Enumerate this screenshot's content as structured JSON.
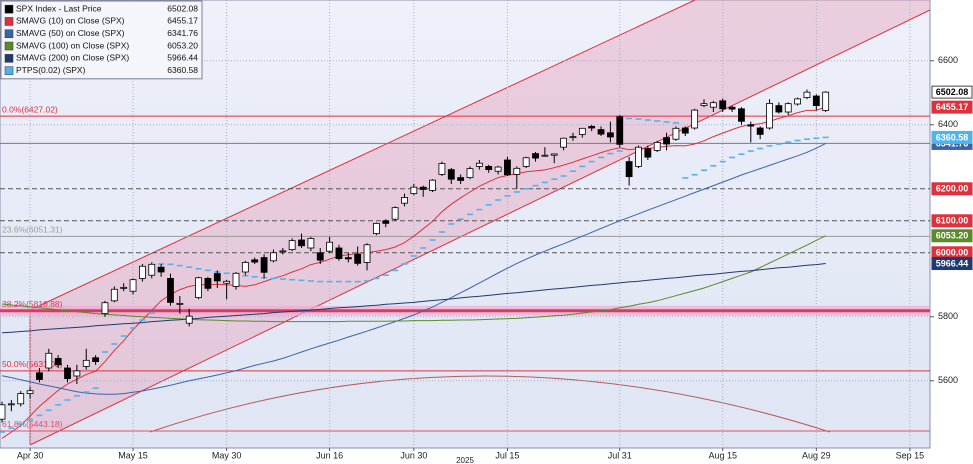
{
  "chart_data": {
    "type": "candlestick",
    "categories": [
      null,
      null,
      null,
      "Apr 30",
      null,
      null,
      null,
      null,
      null,
      null,
      null,
      null,
      null,
      null,
      "May 15",
      null,
      null,
      null,
      null,
      null,
      null,
      null,
      null,
      null,
      "May 30",
      null,
      null,
      null,
      null,
      null,
      null,
      null,
      null,
      null,
      null,
      "Jun 16",
      null,
      null,
      null,
      null,
      null,
      null,
      null,
      null,
      "Jun 30",
      null,
      null,
      null,
      null,
      null,
      null,
      null,
      null,
      null,
      "Jul 15",
      null,
      null,
      null,
      null,
      null,
      null,
      null,
      null,
      null,
      null,
      null,
      "Jul 31",
      null,
      null,
      null,
      null,
      null,
      null,
      null,
      null,
      null,
      null,
      "Aug 15",
      null,
      null,
      null,
      null,
      null,
      null,
      null,
      null,
      null,
      "Aug 29",
      null,
      null,
      null,
      null,
      null,
      null,
      null,
      null,
      null,
      "Sep 15"
    ],
    "year_label": "2025",
    "ylim": [
      5390,
      6790
    ],
    "yticks": [
      5600,
      5800,
      6400,
      6600
    ],
    "grid": true,
    "series": [
      {
        "name": "SPX Index - Last Price",
        "color": "#000000",
        "style": "candle",
        "last_label": "6502.08",
        "open": [
          5480,
          5525,
          5528,
          5560,
          5625,
          5640,
          5670,
          5640,
          5615,
          5645,
          5672,
          5810,
          5850,
          5890,
          5880,
          5920,
          5930,
          5955,
          5920,
          5840,
          5780,
          5860,
          5920,
          5935,
          5905,
          5895,
          5940,
          5978,
          5985,
          5975,
          6005,
          6010,
          6040,
          6015,
          6000,
          6005,
          6015,
          5985,
          5995,
          5970,
          6060,
          6100,
          6105,
          6155,
          6185,
          6205,
          6195,
          6245,
          6260,
          6235,
          6235,
          6270,
          6270,
          6255,
          6290,
          6245,
          6270,
          6310,
          6305,
          6305,
          6330,
          6360,
          6370,
          6395,
          6385,
          6375,
          6425,
          6285,
          6270,
          6325,
          6320,
          6360,
          6355,
          6390,
          6390,
          6460,
          6455,
          6475,
          6455,
          6450,
          6400,
          6390,
          6390,
          6460,
          6440,
          6465,
          6485,
          6490,
          6445,
          null,
          null,
          null,
          null,
          null,
          null,
          null,
          null,
          null
        ],
        "high": [
          5535,
          5540,
          5568,
          5580,
          5640,
          5700,
          5680,
          5650,
          5650,
          5700,
          5680,
          5850,
          5895,
          5905,
          5920,
          5965,
          5970,
          5965,
          5935,
          5865,
          5825,
          5925,
          5925,
          5945,
          5915,
          5940,
          5975,
          5985,
          5995,
          6010,
          6015,
          6045,
          6060,
          6050,
          6015,
          6050,
          6025,
          6000,
          6020,
          6030,
          6095,
          6105,
          6145,
          6185,
          6215,
          6210,
          6230,
          6285,
          6265,
          6245,
          6270,
          6290,
          6275,
          6272,
          6300,
          6270,
          6300,
          6315,
          6330,
          6310,
          6360,
          6375,
          6390,
          6400,
          6395,
          6410,
          6430,
          6300,
          6335,
          6335,
          6350,
          6375,
          6395,
          6395,
          6450,
          6480,
          6475,
          6482,
          6460,
          6455,
          6410,
          6395,
          6480,
          6470,
          6470,
          6485,
          6510,
          6495,
          6505,
          null,
          null,
          null,
          null,
          null,
          null,
          null,
          null,
          null
        ],
        "low": [
          5470,
          5505,
          5520,
          5545,
          5595,
          5630,
          5640,
          5595,
          5590,
          5635,
          5650,
          5800,
          5845,
          5880,
          5870,
          5910,
          5920,
          5925,
          5835,
          5810,
          5770,
          5855,
          5880,
          5890,
          5855,
          5885,
          5930,
          5965,
          5920,
          5970,
          5995,
          6005,
          6015,
          6005,
          5965,
          6000,
          5975,
          5970,
          5960,
          5945,
          6055,
          6080,
          6100,
          6145,
          6180,
          6175,
          6190,
          6240,
          6215,
          6215,
          6230,
          6260,
          6250,
          6245,
          6240,
          6200,
          6265,
          6285,
          6300,
          6280,
          6320,
          6350,
          6360,
          6380,
          6365,
          6345,
          6330,
          6210,
          6265,
          6290,
          6315,
          6320,
          6350,
          6365,
          6385,
          6455,
          6440,
          6440,
          6440,
          6400,
          6345,
          6355,
          6385,
          6435,
          6430,
          6460,
          6480,
          6445,
          6440,
          null,
          null,
          null,
          null,
          null,
          null,
          null,
          null,
          null
        ],
        "values": [
          5525,
          5528,
          5560,
          5569,
          5604,
          5686,
          5650,
          5607,
          5631,
          5664,
          5660,
          5844,
          5886,
          5892,
          5916,
          5958,
          5964,
          5940,
          5845,
          5842,
          5802,
          5922,
          5889,
          5912,
          5911,
          5936,
          5970,
          5971,
          5939,
          6000,
          6006,
          6038,
          6022,
          6045,
          5977,
          6033,
          5982,
          5981,
          5967,
          6025,
          6092,
          6092,
          6141,
          6173,
          6205,
          6198,
          6227,
          6279,
          6230,
          6226,
          6263,
          6280,
          6260,
          6268,
          6244,
          6264,
          6297,
          6296,
          6305,
          6309,
          6358,
          6363,
          6389,
          6390,
          6371,
          6362,
          6339,
          6238,
          6330,
          6299,
          6345,
          6340,
          6389,
          6374,
          6446,
          6466,
          6469,
          6450,
          6449,
          6411,
          6396,
          6370,
          6467,
          6440,
          6466,
          6481,
          6502,
          6460,
          6502.08,
          null,
          null,
          null,
          null,
          null,
          null,
          null,
          null,
          null
        ]
      },
      {
        "name": "SMAVG (10)  on Close (SPX)",
        "color": "#e0303c",
        "style": "line",
        "last_label": "6455.17",
        "values": [
          5420,
          5440,
          5460,
          5490,
          5520,
          5545,
          5570,
          5590,
          5605,
          5620,
          5630,
          5660,
          5695,
          5725,
          5760,
          5790,
          5820,
          5850,
          5870,
          5885,
          5895,
          5900,
          5900,
          5902,
          5900,
          5898,
          5895,
          5900,
          5910,
          5920,
          5928,
          5940,
          5950,
          5963,
          5970,
          5980,
          5990,
          5994,
          5998,
          6000,
          6005,
          6010,
          6018,
          6032,
          6052,
          6075,
          6098,
          6128,
          6152,
          6172,
          6190,
          6208,
          6222,
          6235,
          6242,
          6247,
          6253,
          6256,
          6259,
          6266,
          6274,
          6283,
          6293,
          6303,
          6313,
          6322,
          6328,
          6322,
          6326,
          6326,
          6329,
          6333,
          6335,
          6334,
          6340,
          6350,
          6363,
          6374,
          6385,
          6395,
          6400,
          6403,
          6411,
          6420,
          6428,
          6438,
          6445,
          6445,
          6455.17,
          null,
          null,
          null,
          null,
          null,
          null,
          null,
          null,
          null
        ]
      },
      {
        "name": "SMAVG (50)  on Close (SPX)",
        "color": "#3a64a8",
        "style": "line",
        "hline": true,
        "last_label": "6341.76",
        "values": [
          5616,
          5610,
          5603,
          5597,
          5590,
          5584,
          5578,
          5572,
          5566,
          5562,
          5559,
          5558,
          5558,
          5560,
          5564,
          5568,
          5574,
          5580,
          5586,
          5593,
          5600,
          5606,
          5612,
          5618,
          5625,
          5632,
          5640,
          5648,
          5655,
          5662,
          5670,
          5680,
          5690,
          5700,
          5709,
          5718,
          5727,
          5737,
          5746,
          5755,
          5765,
          5775,
          5785,
          5795,
          5806,
          5818,
          5831,
          5845,
          5860,
          5875,
          5890,
          5906,
          5921,
          5937,
          5952,
          5967,
          5980,
          5993,
          6005,
          6017,
          6028,
          6040,
          6052,
          6064,
          6076,
          6088,
          6100,
          6111,
          6122,
          6133,
          6144,
          6155,
          6166,
          6177,
          6188,
          6199,
          6210,
          6221,
          6232,
          6243,
          6253,
          6263,
          6273,
          6283,
          6293,
          6303,
          6314,
          6327,
          6341.76,
          null,
          null,
          null,
          null,
          null,
          null,
          null,
          null,
          null
        ]
      },
      {
        "name": "SMAVG (100)  on Close (SPX)",
        "color": "#5a8a2a",
        "style": "line",
        "last_label": "6053.20",
        "values": [
          5840,
          5837,
          5834,
          5831,
          5828,
          5825,
          5822,
          5819,
          5816,
          5813,
          5810,
          5808,
          5806,
          5804,
          5802,
          5800,
          5798,
          5797,
          5795,
          5794,
          5792,
          5791,
          5790,
          5789,
          5788,
          5787,
          5787,
          5786,
          5786,
          5785,
          5785,
          5785,
          5785,
          5785,
          5785,
          5785,
          5785,
          5786,
          5786,
          5786,
          5786,
          5786,
          5787,
          5787,
          5788,
          5788,
          5788,
          5789,
          5789,
          5790,
          5790,
          5791,
          5792,
          5793,
          5794,
          5795,
          5797,
          5799,
          5801,
          5803,
          5805,
          5808,
          5812,
          5815,
          5819,
          5822,
          5828,
          5833,
          5839,
          5844,
          5850,
          5858,
          5866,
          5874,
          5882,
          5890,
          5900,
          5910,
          5920,
          5930,
          5940,
          5954,
          5968,
          5982,
          5996,
          6010,
          6024,
          6039,
          6053.2,
          null,
          null,
          null,
          null,
          null,
          null,
          null,
          null,
          null
        ]
      },
      {
        "name": "SMAVG (200)  on Close (SPX)",
        "color": "#1f3a6e",
        "style": "line",
        "last_label": "5966.44",
        "values": [
          5750,
          5752,
          5754,
          5756,
          5759,
          5761,
          5763,
          5765,
          5767,
          5769,
          5772,
          5774,
          5776,
          5778,
          5780,
          5782,
          5785,
          5787,
          5789,
          5791,
          5793,
          5795,
          5798,
          5800,
          5802,
          5804,
          5806,
          5808,
          5810,
          5813,
          5815,
          5817,
          5819,
          5821,
          5823,
          5826,
          5828,
          5830,
          5832,
          5834,
          5836,
          5839,
          5841,
          5843,
          5845,
          5848,
          5851,
          5853,
          5856,
          5859,
          5862,
          5864,
          5867,
          5870,
          5873,
          5875,
          5878,
          5881,
          5884,
          5887,
          5889,
          5892,
          5895,
          5898,
          5900,
          5903,
          5906,
          5909,
          5911,
          5914,
          5917,
          5920,
          5922,
          5925,
          5928,
          5931,
          5933,
          5936,
          5939,
          5942,
          5944,
          5947,
          5950,
          5953,
          5955,
          5958,
          5961,
          5963,
          5966.44,
          null,
          null,
          null,
          null,
          null,
          null,
          null,
          null,
          null
        ]
      },
      {
        "name": "PTPS(0.02)  (SPX)",
        "color": "#4fb4ee",
        "style": "dash",
        "last_label": "6360.58",
        "values": [
          5440,
          5452,
          5465,
          5478,
          5492,
          5508,
          5525,
          5540,
          5553,
          5565,
          5577,
          5690,
          5715,
          5740,
          5765,
          5790,
          5812,
          5965,
          5964,
          5960,
          5955,
          5950,
          5945,
          5940,
          5936,
          5932,
          5928,
          5925,
          5922,
          5920,
          5918,
          5916,
          5914,
          5912,
          5910,
          5910,
          5910,
          5910,
          5910,
          5912,
          5920,
          5930,
          5945,
          5965,
          5990,
          6015,
          6040,
          6065,
          6090,
          6105,
          6120,
          6135,
          6150,
          6165,
          6178,
          6190,
          6200,
          6210,
          6220,
          6230,
          6240,
          6255,
          6270,
          6285,
          6298,
          6310,
          6318,
          6420,
          6418,
          6415,
          6412,
          6409,
          6406,
          6234,
          6244,
          6258,
          6272,
          6285,
          6298,
          6308,
          6318,
          6326,
          6334,
          6340,
          6346,
          6351,
          6355,
          6358,
          6360.58,
          null,
          null,
          null,
          null,
          null,
          null,
          null,
          null,
          null
        ]
      }
    ],
    "levels": [
      {
        "value": 6427.02,
        "label": "0.0%(6427.02)",
        "color": "#e0303c",
        "width": 1
      },
      {
        "value": 6051.31,
        "label": "23.6%(6051.31)",
        "color": "#9a9a9a",
        "width": 1
      },
      {
        "value": 5818.88,
        "label": "38.2%(5818.88)",
        "color": "#d04060",
        "width": 3
      },
      {
        "value": 5631.03,
        "label": "50.0%(5631.03)",
        "color": "#e0303c",
        "width": 1
      },
      {
        "value": 5443.18,
        "label": "61.8%(5443.18)",
        "color": "#e0506a",
        "width": 1
      }
    ],
    "price_lines": [
      {
        "value": 6200,
        "label": "6200.00"
      },
      {
        "value": 6100,
        "label": "6100.00"
      },
      {
        "value": 6000,
        "label": "6000.00"
      }
    ]
  }
}
